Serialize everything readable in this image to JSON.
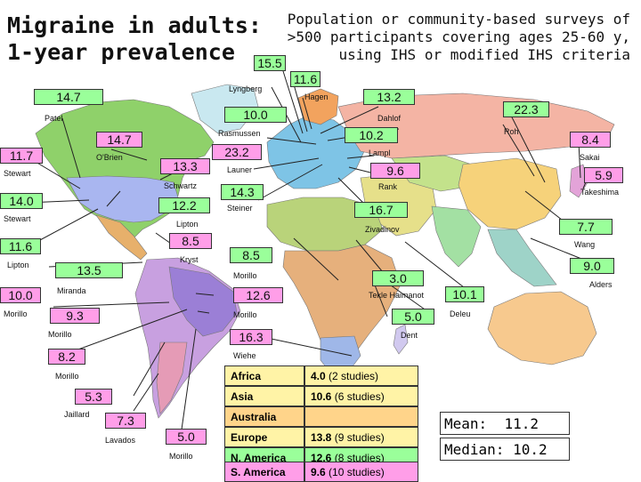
{
  "title": "Migraine in adults:\n1-year prevalence",
  "subtitle": "Population or community-based surveys of\n>500 participants covering ages 25-60 y,\nusing IHS or modified IHS criteria",
  "colors": {
    "ocean": "#ffffff",
    "pink_box": "#ff9ee8",
    "green_box": "#9aff9a",
    "region_yellow": "#fff3a6",
    "region_orange": "#ffd48a"
  },
  "boxes": [
    {
      "value": "15.5",
      "color": "green"
    },
    {
      "value": "11.6",
      "color": "green"
    },
    {
      "value": "14.7",
      "color": "green"
    },
    {
      "value": "13.2",
      "color": "green"
    },
    {
      "value": "10.0",
      "color": "green"
    },
    {
      "value": "22.3",
      "color": "green"
    },
    {
      "value": "14.7",
      "color": "pink"
    },
    {
      "value": "10.2",
      "color": "green"
    },
    {
      "value": "8.4",
      "color": "pink"
    },
    {
      "value": "11.7",
      "color": "pink"
    },
    {
      "value": "23.2",
      "color": "pink"
    },
    {
      "value": "13.3",
      "color": "pink"
    },
    {
      "value": "9.6",
      "color": "pink"
    },
    {
      "value": "5.9",
      "color": "pink"
    },
    {
      "value": "14.3",
      "color": "green"
    },
    {
      "value": "14.0",
      "color": "green"
    },
    {
      "value": "12.2",
      "color": "green"
    },
    {
      "value": "16.7",
      "color": "green"
    },
    {
      "value": "7.7",
      "color": "green"
    },
    {
      "value": "8.5",
      "color": "pink"
    },
    {
      "value": "11.6",
      "color": "green"
    },
    {
      "value": "8.5",
      "color": "green"
    },
    {
      "value": "9.0",
      "color": "green"
    },
    {
      "value": "13.5",
      "color": "green"
    },
    {
      "value": "3.0",
      "color": "green"
    },
    {
      "value": "10.0",
      "color": "pink"
    },
    {
      "value": "12.6",
      "color": "pink"
    },
    {
      "value": "10.1",
      "color": "green"
    },
    {
      "value": "9.3",
      "color": "pink"
    },
    {
      "value": "5.0",
      "color": "green"
    },
    {
      "value": "16.3",
      "color": "pink"
    },
    {
      "value": "8.2",
      "color": "pink"
    },
    {
      "value": "5.3",
      "color": "pink"
    },
    {
      "value": "7.3",
      "color": "pink"
    },
    {
      "value": "5.0",
      "color": "pink"
    }
  ],
  "labels": [
    "Lyngberg",
    "Hagen",
    "Patel",
    "Dahlof",
    "Rasmussen",
    "Roh",
    "O'Brien",
    "Lampl",
    "Sakai",
    "Stewart",
    "Launer",
    "Schwartz",
    "Rank",
    "Takeshima",
    "Stewart",
    "Steiner",
    "Lipton",
    "Zivadinov",
    "Wang",
    "Lipton",
    "Kryst",
    "Alders",
    "Morillo",
    "Miranda",
    "Tekle Haimanot",
    "Morillo",
    "Morillo",
    "Deleu",
    "Morillo",
    "Dent",
    "Wiehe",
    "Morillo",
    "Jaillard",
    "Lavados",
    "Morillo"
  ],
  "region_table": [
    {
      "region": "Africa",
      "value": "4.0",
      "studies": "(2 studies)"
    },
    {
      "region": "Asia",
      "value": "10.6",
      "studies": "(6 studies)"
    },
    {
      "region": "Australia",
      "value": "",
      "studies": ""
    },
    {
      "region": "Europe",
      "value": "13.8",
      "studies": "(9 studies)"
    },
    {
      "region": "N. America",
      "value": "12.6",
      "studies": "(8 studies)"
    },
    {
      "region": "S. America",
      "value": "9.6",
      "studies": "(10 studies)"
    }
  ],
  "summary": {
    "mean_label": "Mean:",
    "mean": "11.2",
    "median_label": "Median:",
    "median": "10.2"
  }
}
